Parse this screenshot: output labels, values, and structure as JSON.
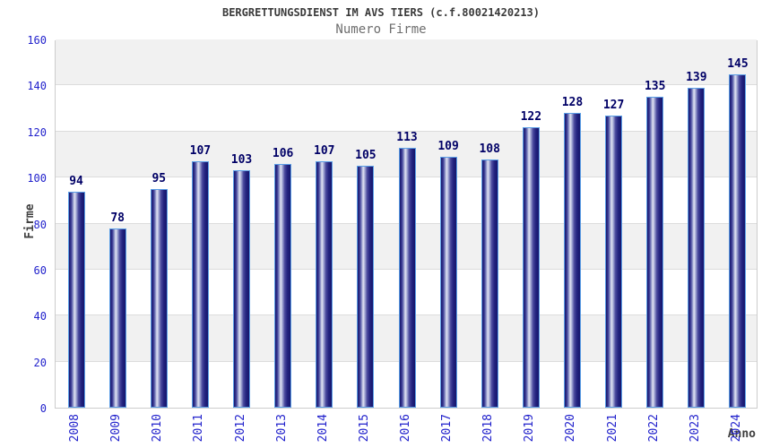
{
  "title": "BERGRETTUNGSDIENST IM AVS TIERS (c.f.80021420213)",
  "subtitle": "Numero Firme",
  "chart_data": {
    "type": "bar",
    "title": "BERGRETTUNGSDIENST IM AVS TIERS (c.f.80021420213)",
    "subtitle": "Numero Firme",
    "xlabel": "Anno",
    "ylabel": "Firme",
    "categories": [
      "2008",
      "2009",
      "2010",
      "2011",
      "2012",
      "2013",
      "2014",
      "2015",
      "2016",
      "2017",
      "2018",
      "2019",
      "2020",
      "2021",
      "2022",
      "2023",
      "2024"
    ],
    "values": [
      94,
      78,
      95,
      107,
      103,
      106,
      107,
      105,
      113,
      109,
      108,
      122,
      128,
      127,
      135,
      139,
      145
    ],
    "ylim": [
      0,
      160
    ],
    "ytick_step": 20,
    "grid": true,
    "legend": "none",
    "colors": {
      "bar_dark": "#15156b",
      "bar_highlight": "#e3e5f3",
      "bar_outline": "#5b9ee6",
      "value_label": "#000066",
      "tick_label": "#2222cc",
      "band_gray": "#f1f1f1",
      "gridline": "#dcdcdc",
      "title_text": "#3a3a3a",
      "subtitle_text": "#6e6e6e",
      "axis_title_text": "#404040"
    }
  }
}
